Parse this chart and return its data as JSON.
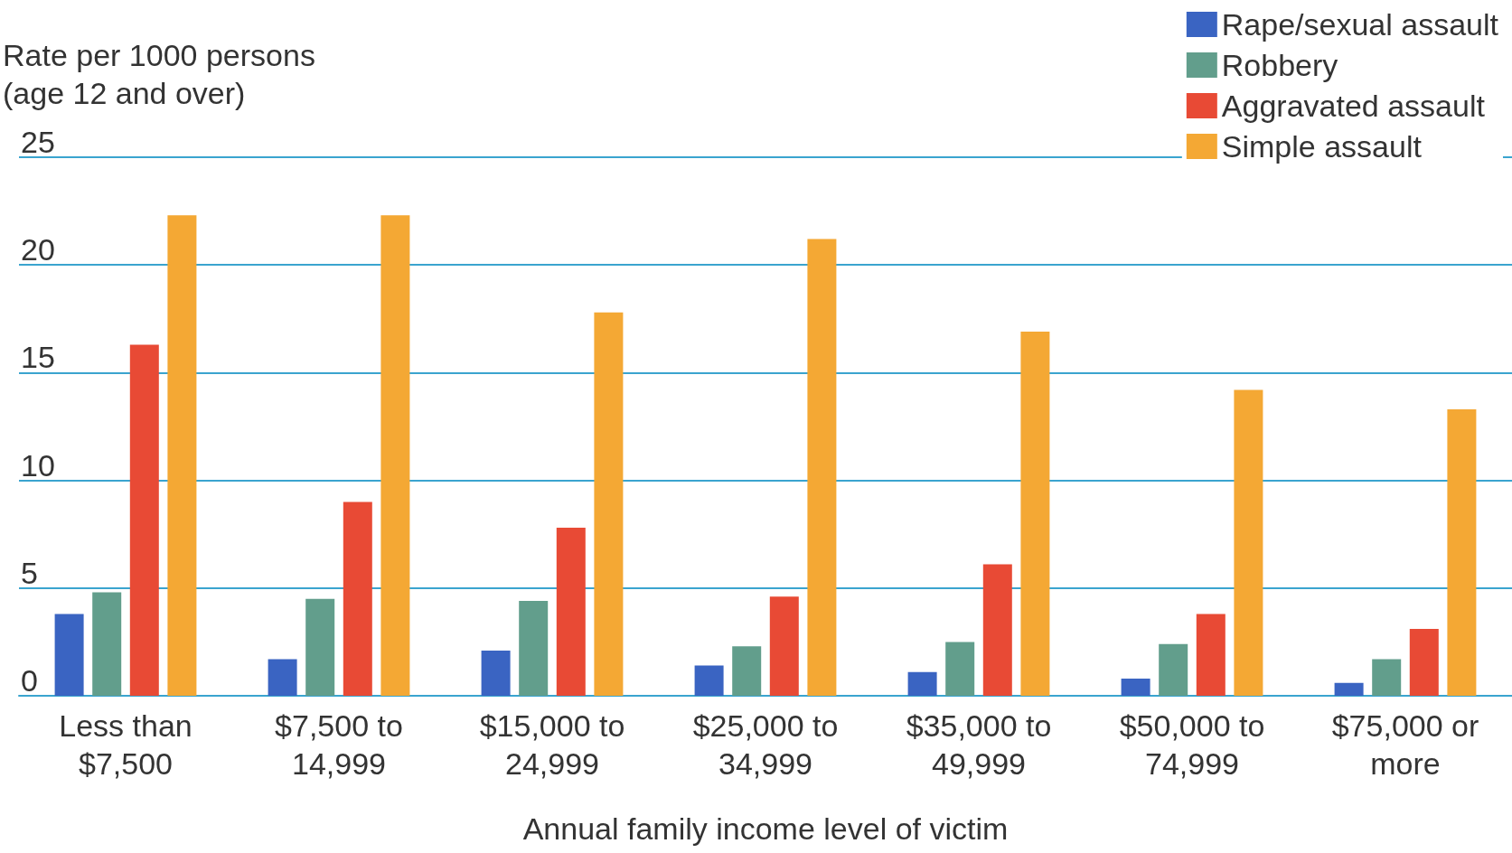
{
  "chart_data": {
    "type": "bar",
    "ylabel": "Rate per 1000 persons\n(age 12 and over)",
    "xlabel": "Annual family income level of victim",
    "categories": [
      "Less than $7,500",
      "$7,500 to 14,999",
      "$15,000 to 24,999",
      "$25,000 to 34,999",
      "$35,000 to 49,999",
      "$50,000 to 74,999",
      "$75,000 or more"
    ],
    "series": [
      {
        "name": "Rape/sexual assault",
        "color": "#3a64c2",
        "values": [
          3.8,
          1.7,
          2.1,
          1.4,
          1.1,
          0.8,
          0.6
        ]
      },
      {
        "name": "Robbery",
        "color": "#629e8c",
        "values": [
          4.8,
          4.5,
          4.4,
          2.3,
          2.5,
          2.4,
          1.7
        ]
      },
      {
        "name": "Aggravated assault",
        "color": "#e84a35",
        "values": [
          16.3,
          9.0,
          7.8,
          4.6,
          6.1,
          3.8,
          3.1
        ]
      },
      {
        "name": "Simple assault",
        "color": "#f4a834",
        "values": [
          22.3,
          22.3,
          17.8,
          21.2,
          16.9,
          14.2,
          13.3
        ]
      }
    ],
    "ylim": [
      0,
      25
    ],
    "yticks": [
      0,
      5,
      10,
      15,
      20,
      25
    ],
    "grid": "y",
    "legend": "top right"
  }
}
